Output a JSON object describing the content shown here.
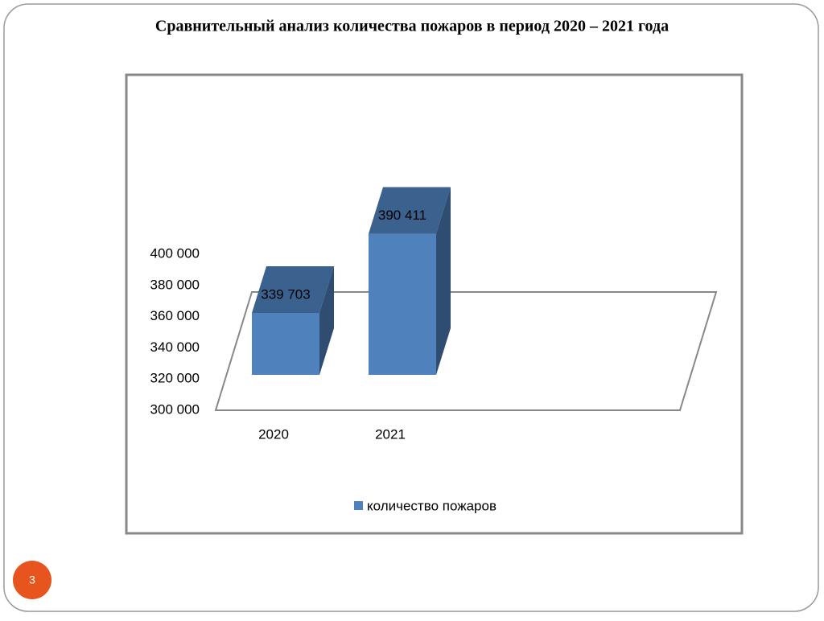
{
  "chart_data": {
    "type": "bar3d",
    "title": "Сравнительный анализ количества пожаров в период 2020 – 2021 года",
    "categories": [
      "2020",
      "2021"
    ],
    "series": [
      {
        "name": "количество пожаров",
        "color": "#4f81bd",
        "values": [
          339703,
          390411
        ],
        "value_labels": [
          "339 703",
          "390 411"
        ]
      }
    ],
    "ylim": [
      300000,
      400000
    ],
    "yticks": [
      {
        "value": 300000,
        "label": "300 000"
      },
      {
        "value": 320000,
        "label": "320 000"
      },
      {
        "value": 340000,
        "label": "340 000"
      },
      {
        "value": 360000,
        "label": "360 000"
      },
      {
        "value": 380000,
        "label": "380 000"
      },
      {
        "value": 400000,
        "label": "400 000"
      }
    ],
    "legend": "bottom"
  },
  "slide": {
    "number": "3"
  }
}
